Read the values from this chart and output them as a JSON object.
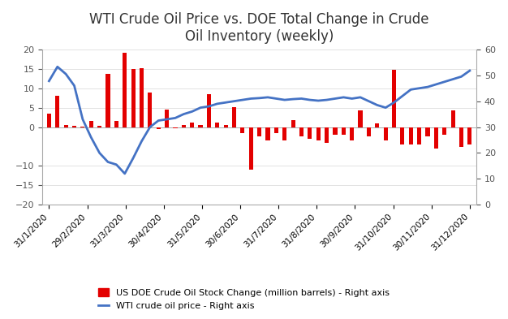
{
  "title": "WTI Crude Oil Price vs. DOE Total Change in Crude\nOil Inventory (weekly)",
  "title_fontsize": 12,
  "background_color": "#ffffff",
  "x_labels": [
    "31/1/2020",
    "29/2/2020",
    "31/3/2020",
    "30/4/2020",
    "31/5/2020",
    "30/6/2020",
    "31/7/2020",
    "31/8/2020",
    "30/9/2020",
    "31/10/2020",
    "30/11/2020",
    "31/12/2020"
  ],
  "bar_values": [
    3.5,
    8.0,
    0.5,
    0.3,
    0.2,
    1.5,
    0.3,
    13.8,
    1.5,
    19.2,
    15.0,
    15.2,
    9.0,
    -0.5,
    4.5,
    -0.3,
    0.5,
    1.2,
    0.5,
    8.5,
    1.2,
    0.5,
    5.2,
    -1.5,
    -11.0,
    -2.5,
    -3.5,
    -1.5,
    -3.5,
    1.8,
    -2.5,
    -3.0,
    -3.5,
    -4.0,
    -2.0,
    -2.0,
    -3.5,
    4.2,
    -2.5,
    1.0,
    -3.5,
    14.8,
    -4.5,
    -4.5,
    -4.5,
    -2.5,
    -5.5,
    -2.0,
    4.2,
    -5.2,
    -4.5
  ],
  "wti_prices": [
    47.8,
    53.3,
    50.5,
    46.0,
    33.0,
    26.0,
    20.0,
    16.5,
    15.5,
    12.0,
    18.0,
    24.5,
    30.0,
    32.5,
    33.0,
    33.5,
    35.0,
    36.0,
    37.5,
    38.0,
    39.0,
    39.5,
    40.0,
    40.5,
    41.0,
    41.2,
    41.5,
    41.0,
    40.5,
    40.8,
    41.0,
    40.5,
    40.2,
    40.5,
    41.0,
    41.5,
    41.0,
    41.5,
    40.0,
    38.5,
    37.5,
    39.5,
    42.0,
    44.5,
    45.0,
    45.5,
    46.5,
    47.5,
    48.5,
    49.5,
    51.8
  ],
  "left_ylim": [
    -20,
    20
  ],
  "left_yticks": [
    -20,
    -15,
    -10,
    0,
    5,
    10,
    15,
    20
  ],
  "right_ylim": [
    0,
    60
  ],
  "right_yticks": [
    0,
    10,
    20,
    30,
    40,
    50,
    60
  ],
  "bar_color": "#e30000",
  "line_color": "#4472c4",
  "legend_bar_label": "US DOE Crude Oil Stock Change (million barrels) - Right axis",
  "legend_line_label": "WTI crude oil price - Right axis"
}
